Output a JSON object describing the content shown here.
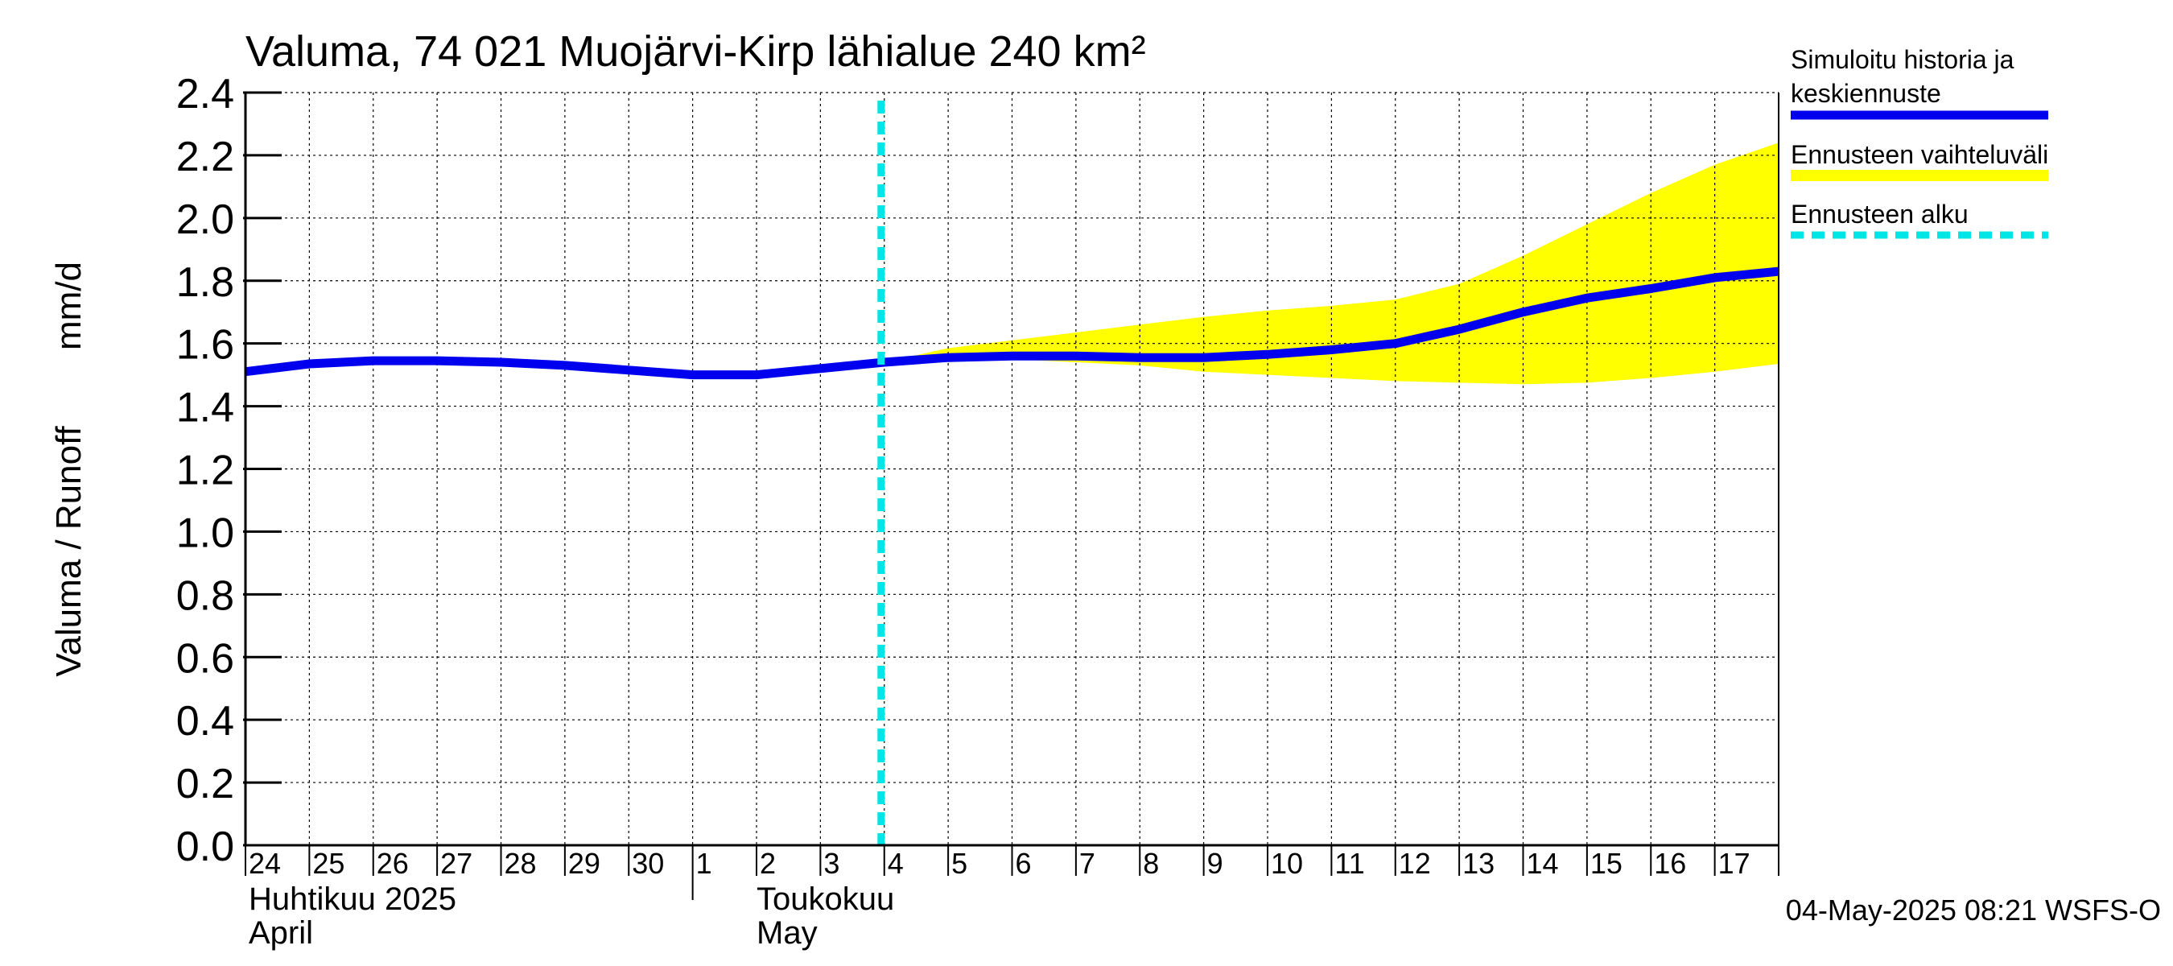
{
  "chart_data": {
    "type": "line",
    "title": "Valuma, 74 021 Muojärvi-Kirp lähialue 240 km²",
    "ylabel_left": "Valuma / Runoff",
    "ylabel_right": "mm/d",
    "ylim": [
      0.0,
      2.4
    ],
    "yticks": [
      "0.0",
      "0.2",
      "0.4",
      "0.6",
      "0.8",
      "1.0",
      "1.2",
      "1.4",
      "1.6",
      "1.8",
      "2.0",
      "2.2",
      "2.4"
    ],
    "grid": true,
    "x_start": "2025-04-24",
    "x_end": "2025-05-18",
    "x_day_labels": [
      "24",
      "25",
      "26",
      "27",
      "28",
      "29",
      "30",
      "1",
      "2",
      "3",
      "4",
      "5",
      "6",
      "7",
      "8",
      "9",
      "10",
      "11",
      "12",
      "13",
      "14",
      "15",
      "16",
      "17"
    ],
    "month_labels": [
      {
        "fi": "Huhtikuu  2025",
        "en": "April",
        "start": "2025-04-24"
      },
      {
        "fi": "Toukokuu",
        "en": "May",
        "start": "2025-05-01"
      }
    ],
    "forecast_start": "2025-05-04",
    "series": [
      {
        "name": "Simuloitu historia ja keskiennuste",
        "color": "#0000ee",
        "x": [
          "2025-04-24",
          "2025-04-25",
          "2025-04-26",
          "2025-04-27",
          "2025-04-28",
          "2025-04-29",
          "2025-04-30",
          "2025-05-01",
          "2025-05-02",
          "2025-05-03",
          "2025-05-04",
          "2025-05-05",
          "2025-05-06",
          "2025-05-07",
          "2025-05-08",
          "2025-05-09",
          "2025-05-10",
          "2025-05-11",
          "2025-05-12",
          "2025-05-13",
          "2025-05-14",
          "2025-05-15",
          "2025-05-16",
          "2025-05-17",
          "2025-05-18"
        ],
        "y": [
          1.51,
          1.535,
          1.545,
          1.545,
          1.54,
          1.53,
          1.515,
          1.5,
          1.5,
          1.52,
          1.54,
          1.555,
          1.56,
          1.56,
          1.555,
          1.555,
          1.565,
          1.58,
          1.6,
          1.645,
          1.7,
          1.745,
          1.775,
          1.81,
          1.83
        ]
      },
      {
        "name": "Ennusteen vaihteluväli",
        "color": "#ffff00",
        "x": [
          "2025-05-04",
          "2025-05-05",
          "2025-05-06",
          "2025-05-07",
          "2025-05-08",
          "2025-05-09",
          "2025-05-10",
          "2025-05-11",
          "2025-05-12",
          "2025-05-13",
          "2025-05-14",
          "2025-05-15",
          "2025-05-16",
          "2025-05-17",
          "2025-05-18"
        ],
        "upper": [
          1.54,
          1.585,
          1.61,
          1.635,
          1.66,
          1.685,
          1.705,
          1.72,
          1.74,
          1.79,
          1.88,
          1.98,
          2.08,
          2.17,
          2.24
        ],
        "lower": [
          1.54,
          1.55,
          1.55,
          1.54,
          1.53,
          1.51,
          1.5,
          1.49,
          1.48,
          1.475,
          1.47,
          1.475,
          1.49,
          1.51,
          1.535
        ]
      }
    ],
    "legend": [
      {
        "label_line1": "Simuloitu historia ja",
        "label_line2": "keskiennuste",
        "color": "#0000ee",
        "style": "solid"
      },
      {
        "label_line1": "Ennusteen vaihteluväli",
        "label_line2": "",
        "color": "#ffff00",
        "style": "solid"
      },
      {
        "label_line1": "Ennusteen alku",
        "label_line2": "",
        "color": "#00e5e5",
        "style": "dashed"
      }
    ],
    "legend_position": "right",
    "footer": "04-May-2025 08:21 WSFS-O"
  }
}
